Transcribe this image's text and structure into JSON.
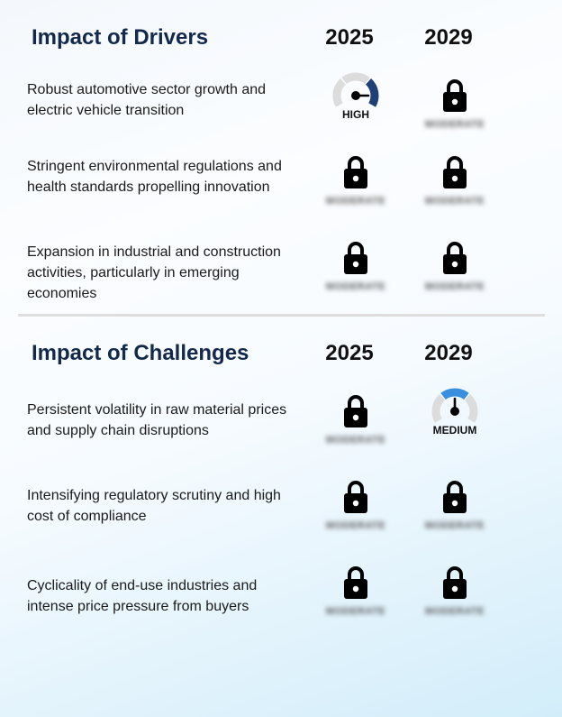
{
  "drivers": {
    "title": "Impact of Drivers",
    "years": [
      "2025",
      "2029"
    ],
    "rows": [
      {
        "text": "Robust automotive sector growth and electric vehicle transition",
        "c2025": {
          "type": "gauge",
          "label": "HIGH",
          "level": "high",
          "color": "#1f3f77"
        },
        "c2029": {
          "type": "lock",
          "blur": "MODERATE"
        }
      },
      {
        "text": "Stringent environmental regulations and health standards propelling innovation",
        "c2025": {
          "type": "lock",
          "blur": "MODERATE"
        },
        "c2029": {
          "type": "lock",
          "blur": "MODERATE"
        }
      },
      {
        "text": "Expansion in industrial and construction activities, particularly in emerging economies",
        "c2025": {
          "type": "lock",
          "blur": "MODERATE"
        },
        "c2029": {
          "type": "lock",
          "blur": "MODERATE"
        }
      }
    ]
  },
  "challenges": {
    "title": "Impact of Challenges",
    "years": [
      "2025",
      "2029"
    ],
    "rows": [
      {
        "text": "Persistent volatility in raw material prices and supply chain disruptions",
        "c2025": {
          "type": "lock",
          "blur": "MODERATE"
        },
        "c2029": {
          "type": "gauge",
          "label": "MEDIUM",
          "level": "medium",
          "color": "#3a8ee0"
        }
      },
      {
        "text": "Intensifying regulatory scrutiny and high cost of compliance",
        "c2025": {
          "type": "lock",
          "blur": "MODERATE"
        },
        "c2029": {
          "type": "lock",
          "blur": "MODERATE"
        }
      },
      {
        "text": "Cyclicality of end-use industries and intense price pressure from buyers",
        "c2025": {
          "type": "lock",
          "blur": "MODERATE"
        },
        "c2029": {
          "type": "lock",
          "blur": "MODERATE"
        }
      }
    ]
  }
}
